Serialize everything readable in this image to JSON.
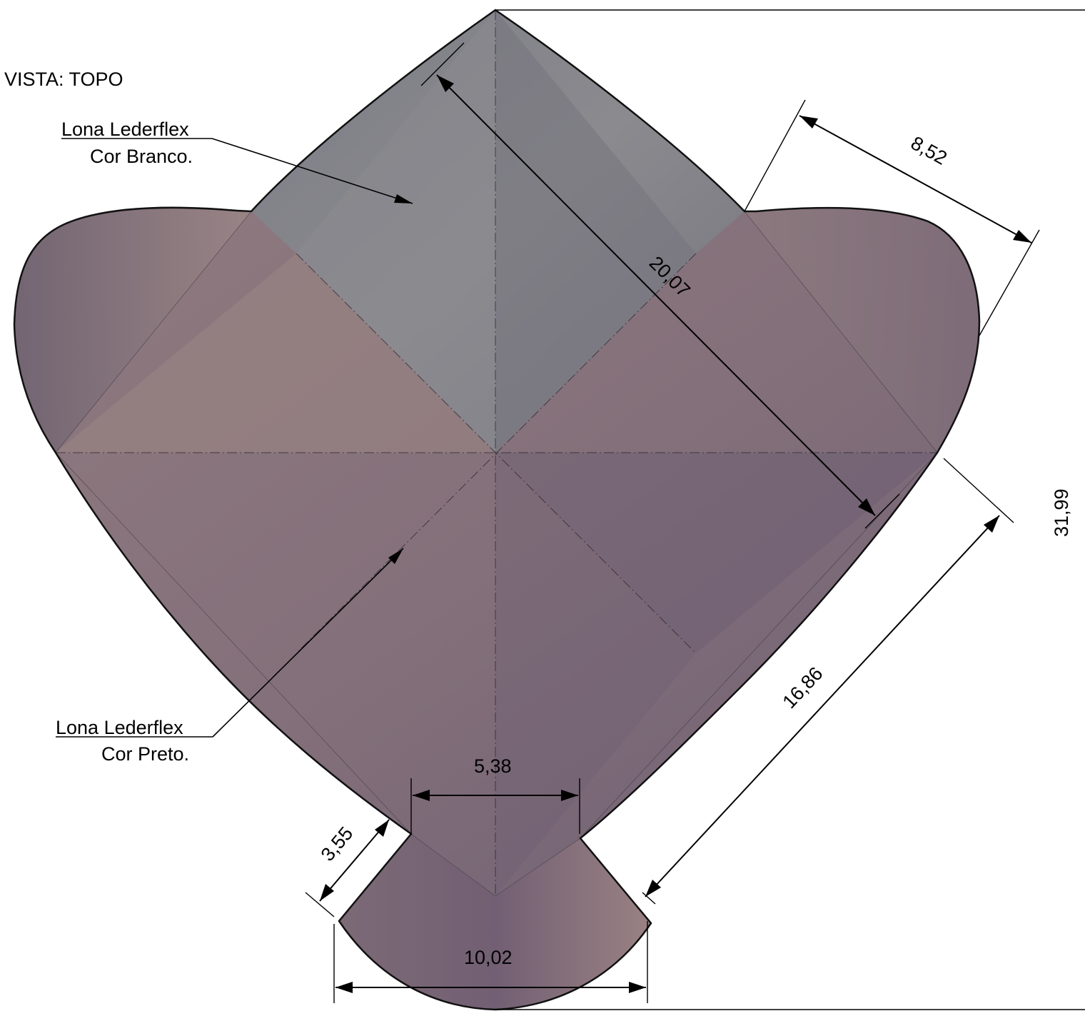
{
  "view_label": "VISTA: TOPO",
  "callouts": {
    "white": {
      "line1": "Lona Lederflex",
      "line2": "Cor Branco."
    },
    "black": {
      "line1": "Lona Lederflex",
      "line2": "Cor Preto."
    }
  },
  "dimensions": {
    "d1": "20,07",
    "d2": "8,52",
    "d3": "31,99",
    "d4": "16,86",
    "d5": "5,38",
    "d6": "3,55",
    "d7": "10,02"
  },
  "colors": {
    "white_material": "#85858b",
    "black_material": "#8a7378",
    "shade_light": "#9a8584",
    "shade_dark": "#675a6e"
  }
}
